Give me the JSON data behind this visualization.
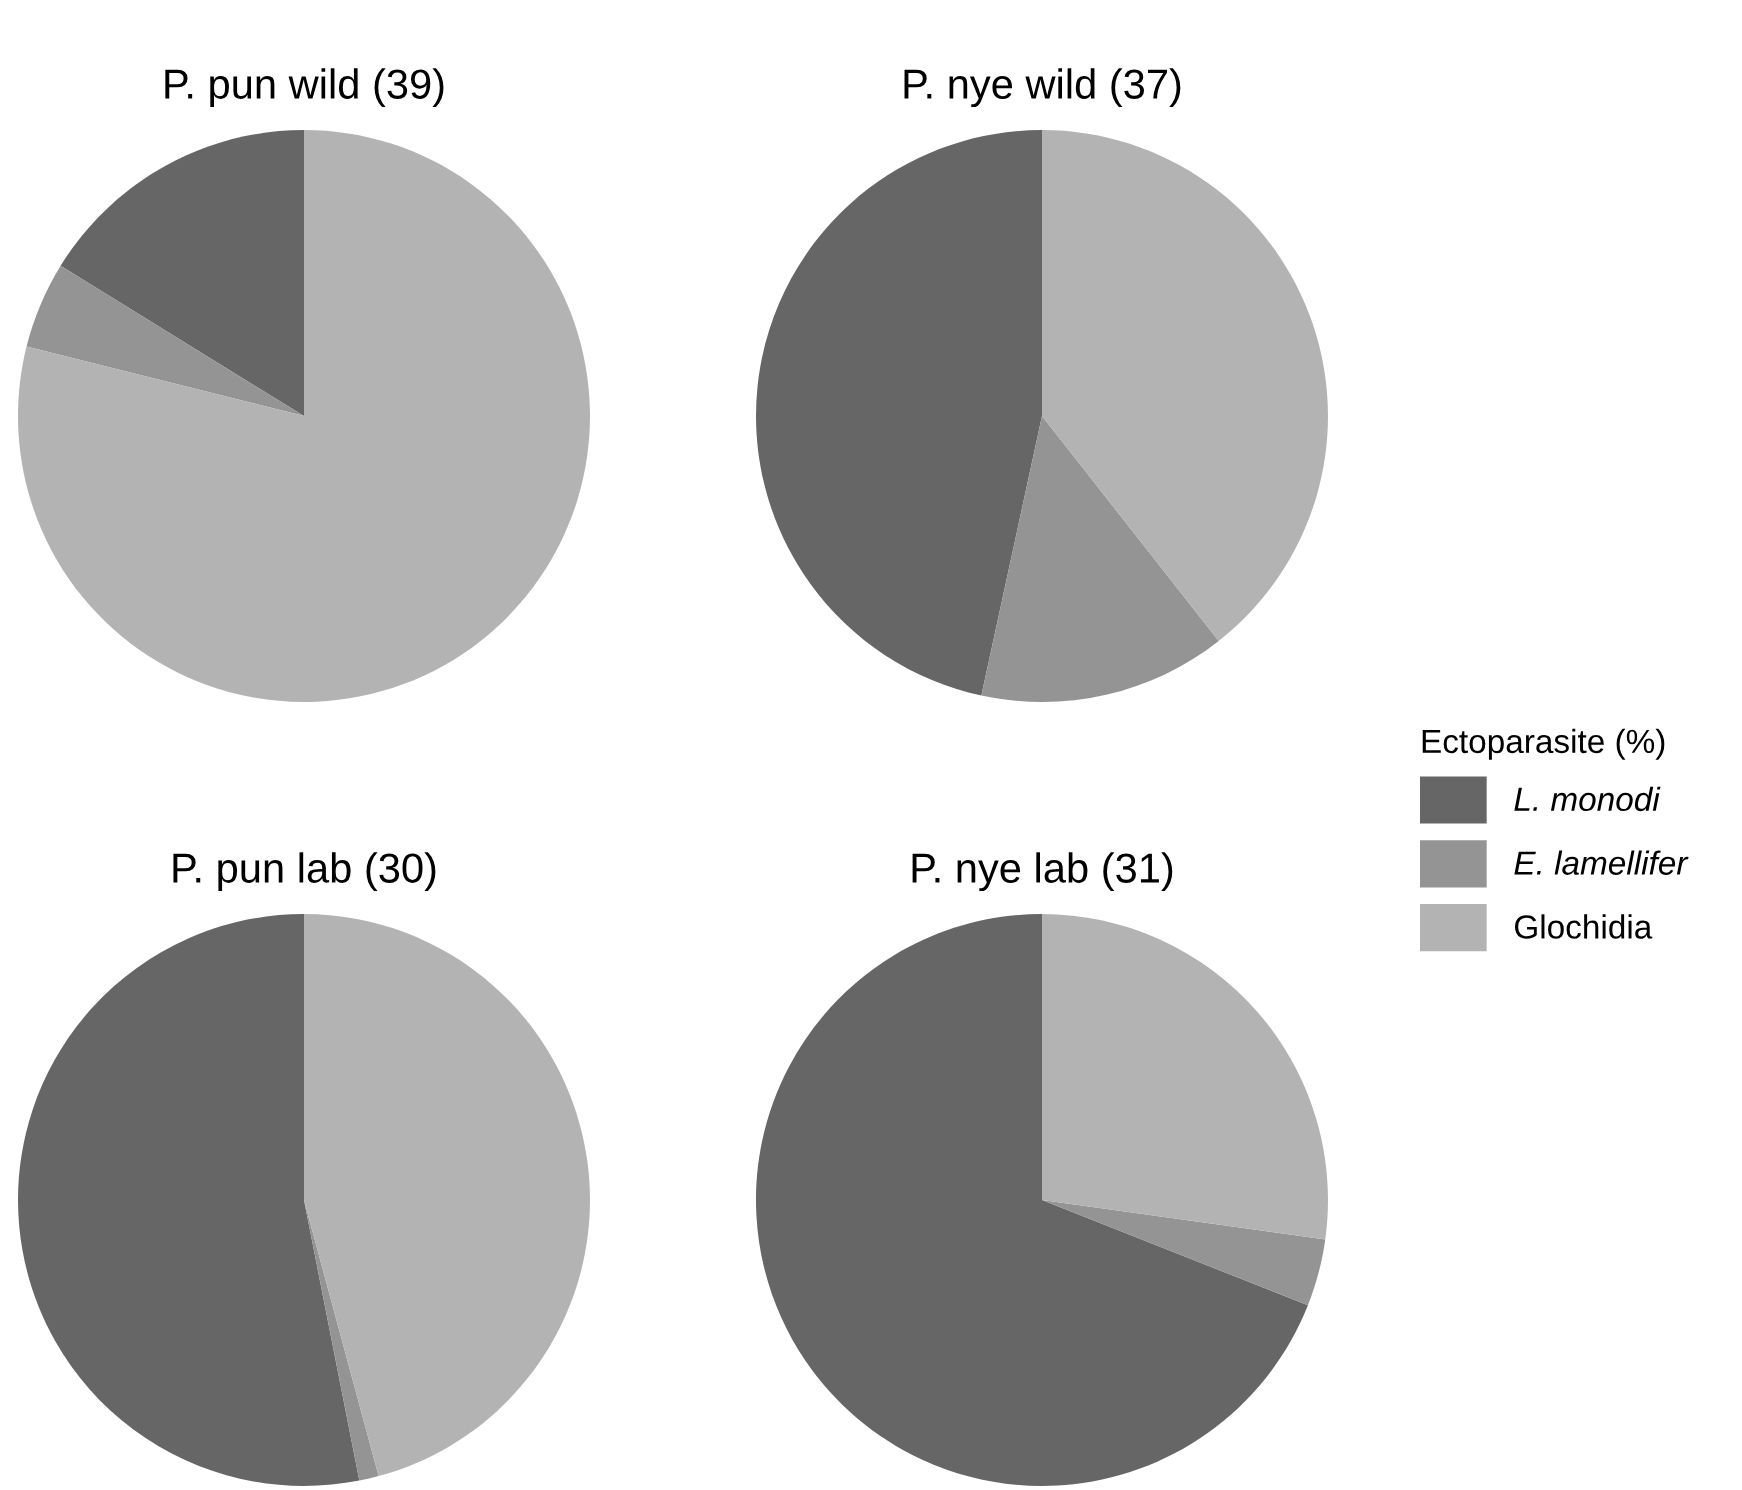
{
  "chart_data": [
    {
      "type": "pie",
      "title": "P. pun wild (39)",
      "categories": [
        "L. monodi",
        "E. lamellifer",
        "Glochidia"
      ],
      "values": [
        16.2,
        4.9,
        78.9
      ],
      "colors": [
        "#666666",
        "#949494",
        "#b3b3b3"
      ],
      "legend": "right",
      "legend_title": "Ectoparasite (%)"
    },
    {
      "type": "pie",
      "title": "P. nye wild (37)",
      "values": [
        46.6,
        14.0,
        39.4
      ],
      "colors": [
        "#666666",
        "#949494",
        "#b3b3b3"
      ]
    },
    {
      "type": "pie",
      "title": "P. pun lab (30)",
      "values": [
        53.1,
        1.1,
        45.8
      ],
      "colors": [
        "#666666",
        "#949494",
        "#b3b3b3"
      ]
    },
    {
      "type": "pie",
      "title": "P. nye lab (31)",
      "values": [
        69.0,
        3.8,
        27.2
      ],
      "colors": [
        "#666666",
        "#949494",
        "#b3b3b3"
      ]
    }
  ]
}
